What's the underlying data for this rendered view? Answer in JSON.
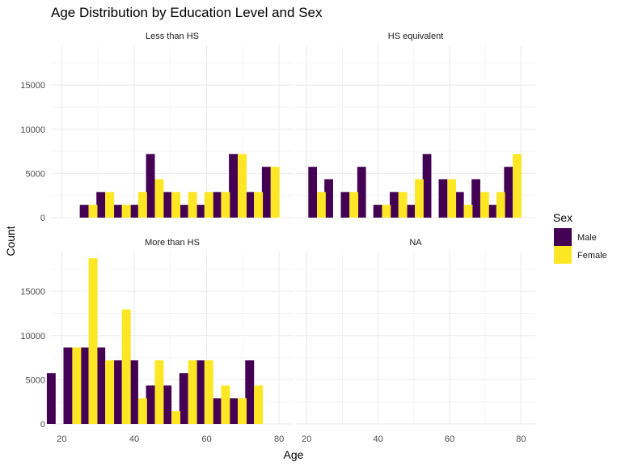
{
  "chart_data": {
    "type": "bar",
    "title": "Age Distribution by Education Level and Sex",
    "xlabel": "Age",
    "ylabel": "Count",
    "xlim": [
      17,
      84
    ],
    "ylim": [
      0,
      19500
    ],
    "x_ticks": [
      20,
      40,
      60,
      80
    ],
    "y_ticks": [
      0,
      5000,
      10000,
      15000
    ],
    "bin_width": 4.875,
    "grid": true,
    "legend": {
      "title": "Sex",
      "position": "right",
      "entries": [
        {
          "name": "Male",
          "color": "#440154"
        },
        {
          "name": "Female",
          "color": "#FDE725"
        }
      ]
    },
    "colors": {
      "Male": "#440154",
      "Female": "#FDE725"
    },
    "x": [
      18.3,
      22.9,
      27.4,
      32.0,
      36.6,
      41.1,
      45.7,
      50.3,
      54.9,
      59.4,
      64.0,
      68.6,
      73.1,
      77.7,
      82.3
    ],
    "panels": [
      {
        "name": "Less than HS",
        "series": [
          {
            "name": "Male",
            "values": [
              0,
              1450,
              2900,
              1450,
              1450,
              7200,
              2900,
              1450,
              1450,
              2900,
              7200,
              2900,
              5750
            ]
          },
          {
            "name": "Female",
            "values": [
              0,
              1450,
              2900,
              1450,
              2900,
              4350,
              2900,
              2900,
              2900,
              2900,
              7200,
              2900,
              5750
            ]
          }
        ],
        "x_start_index": 1
      },
      {
        "name": "HS equivalent",
        "series": [
          {
            "name": "Male",
            "values": [
              5750,
              4350,
              2900,
              5750,
              1450,
              2900,
              1450,
              7200,
              4350,
              2900,
              4350,
              1450,
              5750
            ]
          },
          {
            "name": "Female",
            "values": [
              2900,
              0,
              2900,
              0,
              1450,
              2900,
              4350,
              0,
              4350,
              1450,
              2900,
              2900,
              7200
            ]
          }
        ],
        "x_start_index": 1
      },
      {
        "name": "More than HS",
        "series": [
          {
            "name": "Male",
            "values": [
              5750,
              8650,
              8650,
              8650,
              7200,
              7200,
              4350,
              4350,
              5750,
              7200,
              2900,
              2900,
              7200
            ]
          },
          {
            "name": "Female",
            "values": [
              0,
              8650,
              18750,
              7200,
              12950,
              2900,
              7200,
              1450,
              7200,
              7200,
              4350,
              2900,
              4350
            ]
          }
        ],
        "x_start_index": 0
      },
      {
        "name": "NA",
        "series": [
          {
            "name": "Male",
            "values": []
          },
          {
            "name": "Female",
            "values": []
          }
        ],
        "x_start_index": 0
      }
    ]
  }
}
